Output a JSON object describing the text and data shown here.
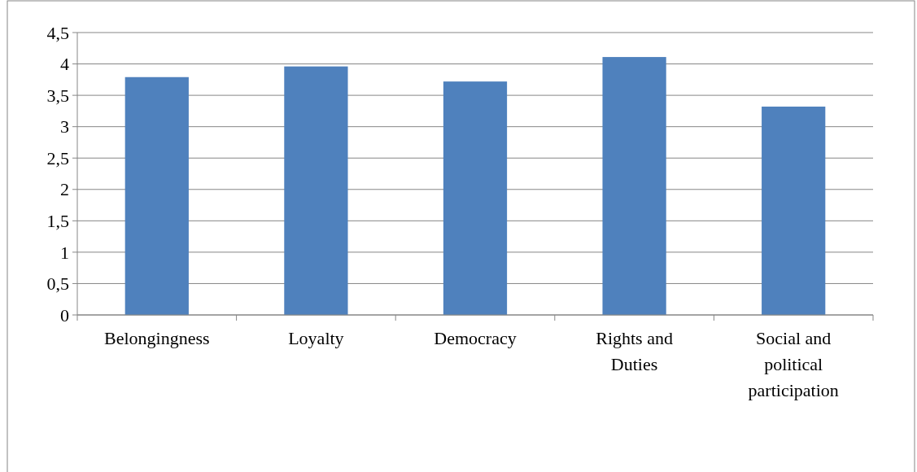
{
  "chart_data": {
    "type": "bar",
    "categories": [
      "Belongingness",
      "Loyalty",
      "Democracy",
      "Rights and Duties",
      "Social and political participation"
    ],
    "values": [
      3.79,
      3.96,
      3.72,
      4.11,
      3.32
    ],
    "color": "#4f81bd",
    "ylim": [
      0,
      4.5
    ],
    "yticks": [
      0,
      {
        "value": 0.5,
        "label": "0,5"
      },
      1,
      {
        "value": 1.5,
        "label": "1,5"
      },
      2,
      {
        "value": 2.5,
        "label": "2,5"
      },
      3,
      {
        "value": 3.5,
        "label": "3,5"
      },
      4,
      {
        "value": 4.5,
        "label": "4,5"
      }
    ],
    "grid": "y"
  }
}
